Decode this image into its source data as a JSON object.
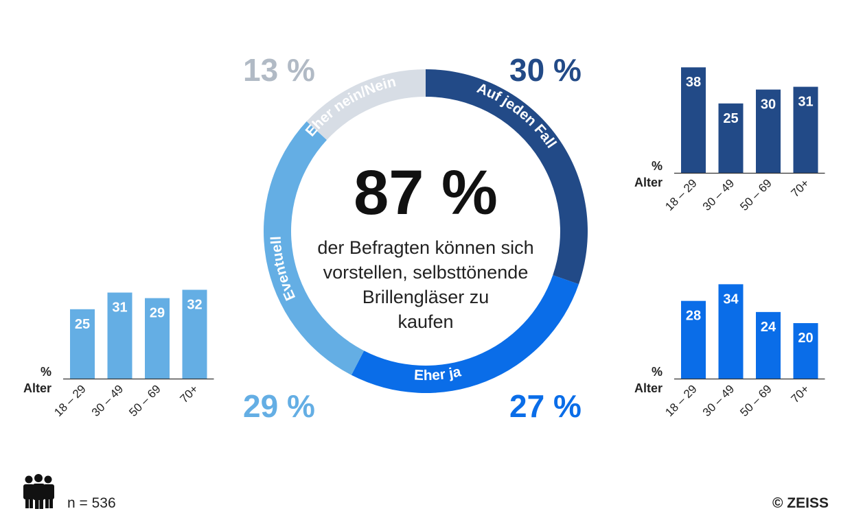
{
  "center": {
    "headline": "87 %",
    "text_lines": [
      "der Befragten können sich",
      "vorstellen, selbsttönende",
      "Brillengläser zu",
      "kaufen"
    ]
  },
  "chart_data": [
    {
      "type": "pie",
      "variant": "donut",
      "categories": [
        "Auf jeden Fall",
        "Eher ja",
        "Eventuell",
        "Eher nein/Nein"
      ],
      "values": [
        30,
        27,
        29,
        13
      ],
      "labels": [
        "30 %",
        "27 %",
        "29 %",
        "13 %"
      ],
      "colors": [
        "#224a87",
        "#0a6de8",
        "#64aee4",
        "#d7dde5"
      ],
      "label_colors": [
        "#224a87",
        "#0a6de8",
        "#64aee4",
        "#b1bac5"
      ]
    },
    {
      "type": "bar",
      "segment": "Auf jeden Fall",
      "categories": [
        "18 – 29",
        "30 – 49",
        "50 – 69",
        "70+"
      ],
      "values": [
        38,
        25,
        30,
        31
      ],
      "ylabel": "%",
      "xlabel": "Alter",
      "color": "#224a87",
      "ylim": [
        0,
        42
      ]
    },
    {
      "type": "bar",
      "segment": "Eher ja",
      "categories": [
        "18 – 29",
        "30 – 49",
        "50 – 69",
        "70+"
      ],
      "values": [
        28,
        34,
        24,
        20
      ],
      "ylabel": "%",
      "xlabel": "Alter",
      "color": "#0a6de8",
      "ylim": [
        0,
        42
      ]
    },
    {
      "type": "bar",
      "segment": "Eventuell",
      "categories": [
        "18 – 29",
        "30 – 49",
        "50 – 69",
        "70+"
      ],
      "values": [
        25,
        31,
        29,
        32
      ],
      "ylabel": "%",
      "xlabel": "Alter",
      "color": "#64aee4",
      "ylim": [
        0,
        42
      ]
    }
  ],
  "footer": {
    "people_icon": "group-of-people-icon",
    "sample": "n = 536",
    "copyright": "© ZEISS"
  }
}
